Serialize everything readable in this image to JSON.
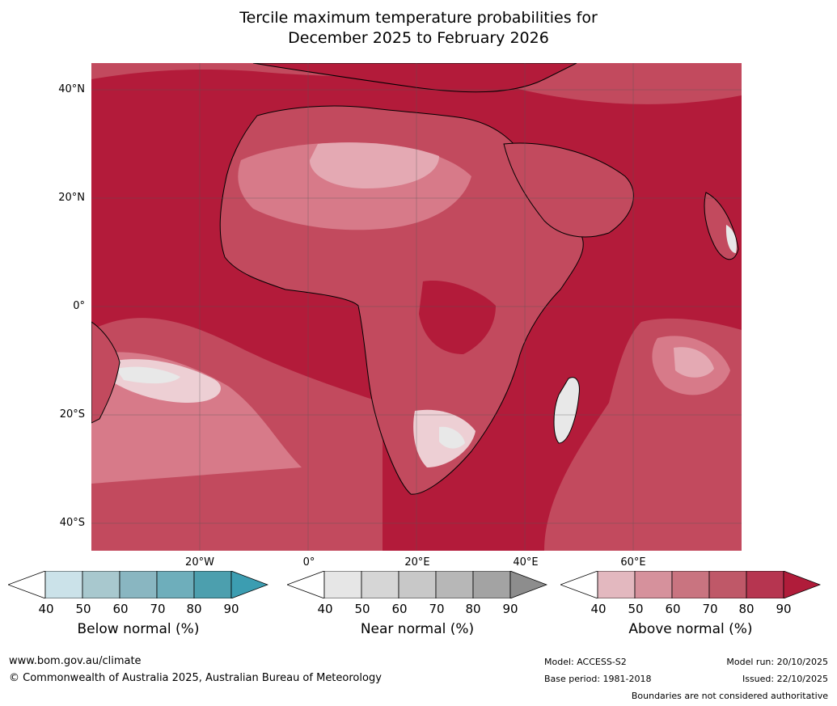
{
  "title": {
    "line1": "Tercile maximum temperature probabilities for",
    "line2": "December 2025 to February 2026"
  },
  "map": {
    "lat_labels": [
      "40°N",
      "20°N",
      "0°",
      "20°S",
      "40°S"
    ],
    "lon_labels": [
      "20°W",
      "0°",
      "20°E",
      "40°E",
      "60°E"
    ],
    "colors": {
      "ocean_dark": "#b31b3a",
      "mid": "#c24a5e",
      "light": "#d77a89",
      "pale": "#e4a9b3",
      "very_pale": "#edcfd4",
      "grey": "#e8e8e8"
    }
  },
  "colorbars": [
    {
      "title": "Below normal (%)",
      "ticks": [
        "40",
        "50",
        "60",
        "70",
        "80",
        "90"
      ],
      "colors": [
        "#cbe2e9",
        "#a8c8ce",
        "#89b6c1",
        "#6eaebb",
        "#4c9fae",
        "#3c9db1"
      ]
    },
    {
      "title": "Near normal (%)",
      "ticks": [
        "40",
        "50",
        "60",
        "70",
        "80",
        "90"
      ],
      "colors": [
        "#e6e6e6",
        "#d6d6d6",
        "#c8c8c8",
        "#b7b7b7",
        "#a3a3a3",
        "#8d8d8d"
      ]
    },
    {
      "title": "Above normal (%)",
      "ticks": [
        "40",
        "50",
        "60",
        "70",
        "80",
        "90"
      ],
      "colors": [
        "#e3b8bf",
        "#d6919c",
        "#c97480",
        "#bf5868",
        "#b63550",
        "#b01c3a"
      ]
    }
  ],
  "footer": {
    "website": "www.bom.gov.au/climate",
    "copyright": "© Commonwealth of Australia 2025, Australian Bureau of Meteorology",
    "model": "Model: ACCESS-S2",
    "base_period": "Base period: 1981-2018",
    "model_run": "Model run: 20/10/2025",
    "issued": "Issued: 22/10/2025",
    "boundaries": "Boundaries are not considered authoritative"
  }
}
